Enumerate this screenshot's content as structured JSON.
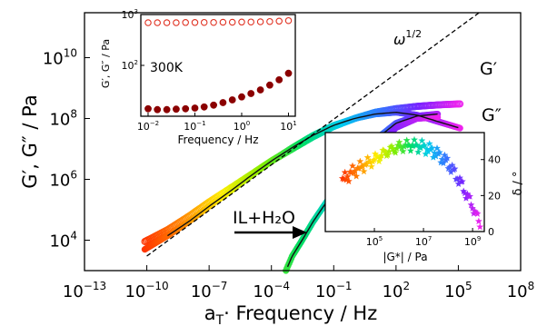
{
  "chart_data": [
    {
      "type": "scatter",
      "title": "",
      "xlabel_prefix": "a",
      "xlabel_sub": "T",
      "xlabel_rest": "·  Frequency / Hz",
      "ylabel": "G′, G″ / Pa",
      "x_scale": "log",
      "y_scale": "log",
      "xlim": [
        1e-13,
        100000000.0
      ],
      "ylim": [
        1000.0,
        300000000000.0
      ],
      "xticks": [
        1e-13,
        1e-10,
        1e-07,
        0.0001,
        0.1,
        100.0,
        100000.0,
        100000000.0
      ],
      "xtick_labels": [
        {
          "base": "10",
          "exp": "−13"
        },
        {
          "base": "10",
          "exp": "−10"
        },
        {
          "base": "10",
          "exp": "−7"
        },
        {
          "base": "10",
          "exp": "−4"
        },
        {
          "base": "10",
          "exp": "−1"
        },
        {
          "base": "10",
          "exp": "2"
        },
        {
          "base": "10",
          "exp": "5"
        },
        {
          "base": "10",
          "exp": "8"
        }
      ],
      "yticks": [
        10000.0,
        1000000.0,
        100000000.0,
        10000000000.0
      ],
      "ytick_labels": [
        {
          "base": "10",
          "exp": "4"
        },
        {
          "base": "10",
          "exp": "6"
        },
        {
          "base": "10",
          "exp": "8"
        },
        {
          "base": "10",
          "exp": "10"
        }
      ],
      "colormap": [
        "#ff3300",
        "#ff8800",
        "#ffee00",
        "#88ee00",
        "#00dd66",
        "#00ccee",
        "#3377ff",
        "#7722ff",
        "#ee22ee"
      ],
      "series": [
        {
          "name": "G′",
          "marker": "open-circle",
          "label_color": "#999999",
          "x": [
            8e-11,
            1e-09,
            1e-08,
            1e-07,
            1e-06,
            1e-05,
            0.0001,
            0.001,
            0.01,
            0.1,
            1,
            10,
            100,
            1000.0,
            10000.0,
            100000.0
          ],
          "y": [
            9000.0,
            22000.0,
            60000.0,
            180000.0,
            500000.0,
            1400000.0,
            4000000.0,
            10000000.0,
            25000000.0,
            55000000.0,
            100000000.0,
            160000000.0,
            210000000.0,
            250000000.0,
            280000000.0,
            300000000.0
          ]
        },
        {
          "name": "G″",
          "marker": "filled-circle",
          "label_color": "#000000",
          "x": [
            8e-11,
            1e-09,
            1e-08,
            1e-07,
            1e-06,
            1e-05,
            0.0001,
            0.001,
            0.01,
            0.1,
            1,
            10,
            100,
            1000.0,
            10000.0,
            100000.0
          ],
          "y": [
            5000.0,
            14000.0,
            40000.0,
            130000.0,
            400000.0,
            1300000.0,
            4000000.0,
            11000000.0,
            28000000.0,
            60000000.0,
            100000000.0,
            140000000.0,
            160000000.0,
            130000000.0,
            80000000.0,
            50000000.0
          ]
        },
        {
          "name": "IL+H₂O G′",
          "marker": "filled-circle",
          "x": [
            0.0005,
            0.001,
            0.003,
            0.01,
            0.1,
            1,
            10,
            100,
            1000.0,
            10000.0
          ],
          "y": [
            1000.0,
            3000.0,
            10000.0,
            40000.0,
            400000.0,
            3000000.0,
            20000000.0,
            70000000.0,
            120000000.0,
            140000000.0
          ]
        },
        {
          "name": "IL+H₂O G″",
          "marker": "filled-circle",
          "x": [
            0.1,
            1,
            10,
            100,
            1000.0,
            10000.0
          ],
          "y": [
            100000.0,
            1000000.0,
            10000000.0,
            50000000.0,
            100000000.0,
            110000000.0
          ]
        }
      ],
      "reference_line": {
        "label": "ω",
        "label_exp": "1/2",
        "x": [
          1e-10,
          1000000.0
        ],
        "y": [
          3000.0,
          300000000000.0
        ]
      },
      "annotations": {
        "arrow_label": "IL+H₂O",
        "gp_label": "G′",
        "gpp_label": "G″"
      }
    },
    {
      "type": "scatter",
      "title": "",
      "label": "300K",
      "xlabel": "Frequency / Hz",
      "ylabel": "G′, G″ / Pa",
      "x_scale": "log",
      "y_scale": "log",
      "xlim": [
        0.007,
        14
      ],
      "ylim": [
        10,
        1000
      ],
      "xticks": [
        0.01,
        0.1,
        1,
        10
      ],
      "xtick_labels": [
        {
          "base": "10",
          "exp": "−2"
        },
        {
          "base": "10",
          "exp": "−1"
        },
        {
          "base": "10",
          "exp": "0"
        },
        {
          "base": "10",
          "exp": "1"
        }
      ],
      "yticks": [
        100,
        1000
      ],
      "ytick_labels": [
        {
          "base": "10",
          "exp": "2"
        },
        {
          "base": "10",
          "exp": "3"
        }
      ],
      "marker_color": "#8b0000",
      "open_color": "#e03020",
      "series": [
        {
          "name": "G′",
          "marker": "open-circle",
          "x": [
            0.01,
            0.0158,
            0.0251,
            0.0398,
            0.0631,
            0.1,
            0.158,
            0.251,
            0.398,
            0.631,
            1,
            1.58,
            2.51,
            3.98,
            6.31,
            10
          ],
          "y": [
            690,
            690,
            690,
            690,
            695,
            695,
            700,
            700,
            705,
            705,
            710,
            715,
            720,
            730,
            740,
            760
          ]
        },
        {
          "name": "G″",
          "marker": "filled-circle",
          "x": [
            0.01,
            0.0158,
            0.0251,
            0.0398,
            0.0631,
            0.1,
            0.158,
            0.251,
            0.398,
            0.631,
            1,
            1.58,
            2.51,
            3.98,
            6.31,
            10
          ],
          "y": [
            14,
            13.5,
            13.5,
            13.8,
            14,
            14.5,
            15.2,
            16.5,
            18.5,
            21,
            24,
            28,
            33,
            41,
            52,
            70
          ]
        }
      ]
    },
    {
      "type": "scatter",
      "title": "",
      "xlabel": "|G*| / Pa",
      "ylabel": "δ / °",
      "x_scale": "log",
      "xlim": [
        1000.0,
        3000000000.0
      ],
      "ylim": [
        0,
        55
      ],
      "xticks": [
        100000.0,
        10000000.0,
        1000000000.0
      ],
      "xtick_labels": [
        {
          "base": "10",
          "exp": "5"
        },
        {
          "base": "10",
          "exp": "7"
        },
        {
          "base": "10",
          "exp": "9"
        }
      ],
      "yticks": [
        0,
        20,
        40
      ],
      "ytick_labels": [
        "0",
        "20",
        "40"
      ],
      "series": [
        {
          "name": "δ",
          "marker": "star",
          "x": [
            5000.0,
            10000.0,
            30000.0,
            100000.0,
            300000.0,
            1000000.0,
            3000000.0,
            10000000.0,
            30000000.0,
            100000000.0,
            300000000.0,
            1000000000.0,
            2000000000.0
          ],
          "y": [
            28,
            32,
            36,
            40,
            44,
            47,
            48,
            47,
            44,
            38,
            28,
            14,
            4
          ]
        }
      ]
    }
  ]
}
